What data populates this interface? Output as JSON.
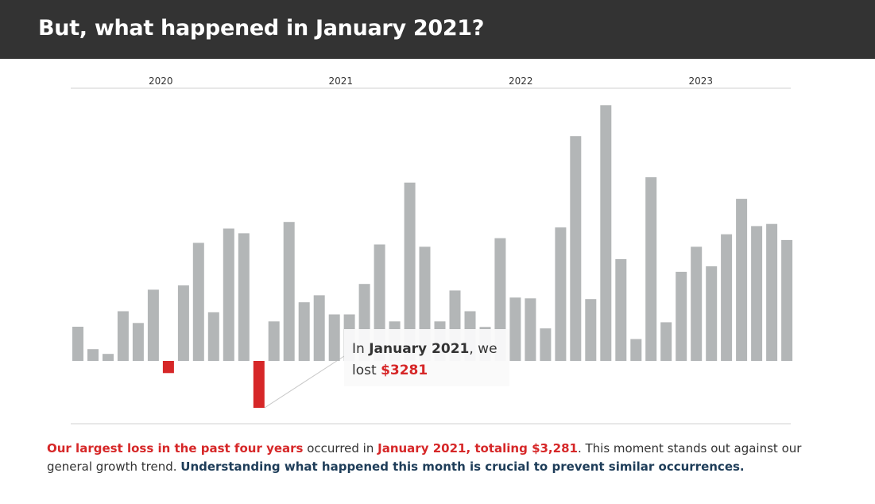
{
  "header": {
    "title": "But, what happened in January 2021?"
  },
  "callout": {
    "pre": "In ",
    "month": "January  2021",
    "mid": ", we lost ",
    "amount": "$3281"
  },
  "caption": {
    "part1": "Our largest loss in the past four years",
    "part2": " occurred in ",
    "part3": "January 2021, totaling $3,281",
    "part4": ". This moment stands out against our general growth trend. ",
    "part5": "Understanding what happened this month is crucial to prevent similar occurrences."
  },
  "colors": {
    "positive": "#b3b6b7",
    "negative": "#d62728",
    "header_bg": "#333333",
    "emphasis_navy": "#1e3d59"
  },
  "chart_data": {
    "type": "bar",
    "title": "",
    "xlabel": "",
    "ylabel": "",
    "grid": false,
    "year_labels": [
      "2020",
      "2021",
      "2022",
      "2023"
    ],
    "categories": [
      "2020-01",
      "2020-02",
      "2020-03",
      "2020-04",
      "2020-05",
      "2020-06",
      "2020-07",
      "2020-08",
      "2020-09",
      "2020-10",
      "2020-11",
      "2020-12",
      "2021-01",
      "2021-02",
      "2021-03",
      "2021-04",
      "2021-05",
      "2021-06",
      "2021-07",
      "2021-08",
      "2021-09",
      "2021-10",
      "2021-11",
      "2021-12",
      "2022-01",
      "2022-02",
      "2022-03",
      "2022-04",
      "2022-05",
      "2022-06",
      "2022-07",
      "2022-08",
      "2022-09",
      "2022-10",
      "2022-11",
      "2022-12",
      "2023-01",
      "2023-02",
      "2023-03",
      "2023-04",
      "2023-05",
      "2023-06",
      "2023-07",
      "2023-08",
      "2023-09",
      "2023-10",
      "2023-11",
      "2023-12"
    ],
    "values": [
      2390,
      820,
      490,
      3470,
      2650,
      4980,
      -850,
      5280,
      8250,
      3400,
      9250,
      8920,
      -3281,
      2760,
      9710,
      4100,
      4590,
      3250,
      3250,
      5380,
      8140,
      2760,
      12460,
      7980,
      2760,
      4920,
      3470,
      2370,
      8580,
      4430,
      4370,
      2270,
      9330,
      15710,
      4320,
      17870,
      7110,
      1530,
      12840,
      2700,
      6230,
      7980,
      6610,
      8850,
      11330,
      9420,
      9570,
      8450
    ],
    "ylim": [
      -4400,
      18000
    ]
  }
}
